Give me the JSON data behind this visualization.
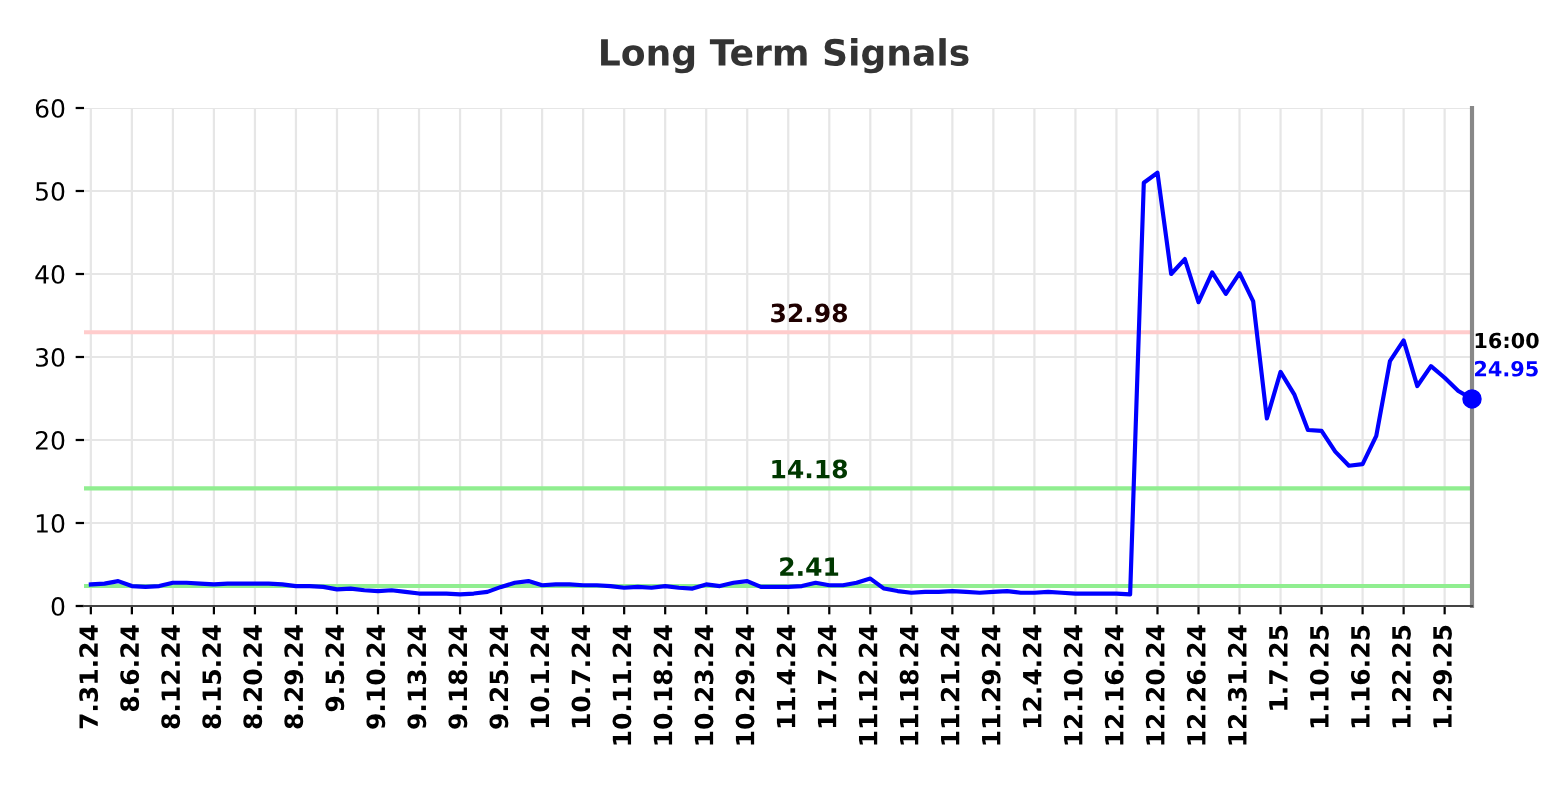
{
  "chart_data": {
    "type": "line",
    "title": "Long Term Signals",
    "categories": [
      "7.31.24",
      null,
      null,
      "8.6.24",
      null,
      null,
      "8.12.24",
      null,
      null,
      "8.15.24",
      null,
      null,
      "8.20.24",
      null,
      null,
      "8.29.24",
      null,
      null,
      "9.5.24",
      null,
      null,
      "9.10.24",
      null,
      null,
      "9.13.24",
      null,
      null,
      "9.18.24",
      null,
      null,
      "9.25.24",
      null,
      null,
      "10.1.24",
      null,
      null,
      "10.7.24",
      null,
      null,
      "10.11.24",
      null,
      null,
      "10.18.24",
      null,
      null,
      "10.23.24",
      null,
      null,
      "10.29.24",
      null,
      null,
      "11.4.24",
      null,
      null,
      "11.7.24",
      null,
      null,
      "11.12.24",
      null,
      null,
      "11.18.24",
      null,
      null,
      "11.21.24",
      null,
      null,
      "11.29.24",
      null,
      null,
      "12.4.24",
      null,
      null,
      "12.10.24",
      null,
      null,
      "12.16.24",
      null,
      null,
      "12.20.24",
      null,
      null,
      "12.26.24",
      null,
      null,
      "12.31.24",
      null,
      null,
      "1.7.25",
      null,
      null,
      "1.10.25",
      null,
      null,
      "1.16.25",
      null,
      null,
      "1.22.25",
      null,
      null,
      "1.29.25",
      null,
      null
    ],
    "series": [
      {
        "color": "#0000ff",
        "values": [
          2.6,
          2.7,
          3.0,
          2.4,
          2.3,
          2.4,
          2.8,
          2.8,
          2.7,
          2.6,
          2.7,
          2.7,
          2.7,
          2.7,
          2.6,
          2.4,
          2.4,
          2.3,
          2.0,
          2.1,
          1.9,
          1.8,
          1.9,
          1.7,
          1.5,
          1.5,
          1.5,
          1.4,
          1.5,
          1.7,
          2.3,
          2.8,
          3.0,
          2.5,
          2.6,
          2.6,
          2.5,
          2.5,
          2.4,
          2.2,
          2.3,
          2.2,
          2.4,
          2.2,
          2.1,
          2.6,
          2.4,
          2.8,
          3.0,
          2.3,
          2.3,
          2.3,
          2.4,
          2.8,
          2.5,
          2.5,
          2.8,
          3.3,
          2.1,
          1.8,
          1.6,
          1.7,
          1.7,
          1.8,
          1.7,
          1.6,
          1.7,
          1.8,
          1.6,
          1.6,
          1.7,
          1.6,
          1.5,
          1.5,
          1.5,
          1.5,
          1.4,
          51,
          52.2,
          40,
          41.8,
          36.6,
          40.2,
          37.6,
          40.1,
          36.7,
          22.6,
          28.2,
          25.5,
          21.2,
          21.1,
          18.6,
          16.9,
          17.1,
          20.5,
          29.5,
          32,
          26.5,
          28.9,
          27.5,
          25.9,
          24.95
        ]
      }
    ],
    "ylim": [
      0,
      60
    ],
    "yticks": [
      0,
      10,
      20,
      30,
      40,
      50,
      60
    ],
    "grid": true,
    "marker": "none",
    "line_style": "solid",
    "ref_lines": [
      {
        "axis": "y",
        "value": 32.98,
        "label": "32.98",
        "color": "#ffcccc"
      },
      {
        "axis": "y",
        "value": 14.18,
        "label": "14.18",
        "color": "#90ee90"
      },
      {
        "axis": "y",
        "value": 2.41,
        "label": "2.41",
        "color": "#90ee90"
      }
    ],
    "annotations": [
      "16:00",
      "24.95"
    ]
  }
}
